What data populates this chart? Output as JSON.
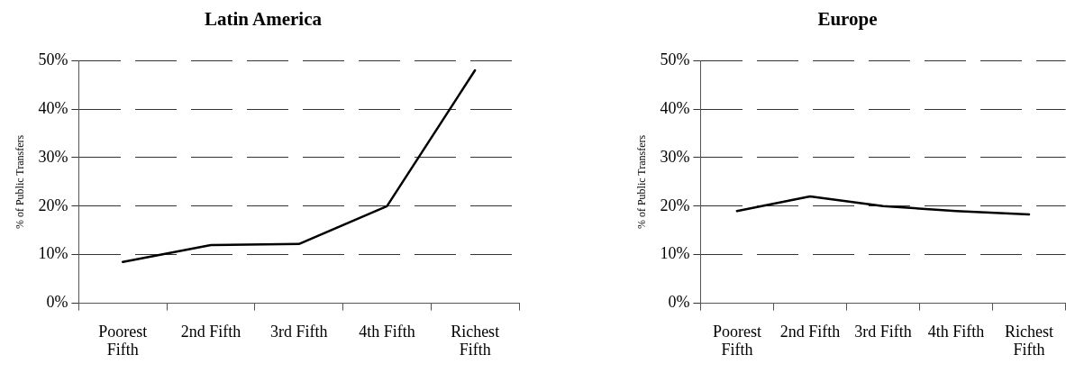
{
  "chart_data": [
    {
      "type": "line",
      "title": "Latin America",
      "ylabel": "% of Public Transfers",
      "categories": [
        "Poorest Fifth",
        "2nd Fifth",
        "3rd Fifth",
        "4th Fifth",
        "Richest Fifth"
      ],
      "series": [
        {
          "color": "#000000",
          "values": [
            8.5,
            12,
            12.2,
            20,
            48
          ]
        }
      ],
      "ylim": [
        0,
        50
      ],
      "yticks": [
        {
          "value": 0,
          "label": "0%"
        },
        {
          "value": 10,
          "label": "10%"
        },
        {
          "value": 20,
          "label": "20%"
        },
        {
          "value": 30,
          "label": "30%"
        },
        {
          "value": 40,
          "label": "40%"
        },
        {
          "value": 50,
          "label": "50%"
        }
      ],
      "grid": "y",
      "legend": false,
      "marker": "none",
      "line_style": "solid"
    },
    {
      "type": "line",
      "title": "Europe",
      "ylabel": "% of Public Transfers",
      "categories": [
        "Poorest Fifth",
        "2nd Fifth",
        "3rd Fifth",
        "4th Fifth",
        "Richest Fifth"
      ],
      "series": [
        {
          "color": "#000000",
          "values": [
            19,
            22,
            20,
            19,
            18.3
          ]
        }
      ],
      "ylim": [
        0,
        50
      ],
      "yticks": [
        {
          "value": 0,
          "label": "0%"
        },
        {
          "value": 10,
          "label": "10%"
        },
        {
          "value": 20,
          "label": "20%"
        },
        {
          "value": 30,
          "label": "30%"
        },
        {
          "value": 40,
          "label": "40%"
        },
        {
          "value": 50,
          "label": "50%"
        }
      ],
      "grid": "y",
      "legend": false,
      "marker": "none",
      "line_style": "solid"
    }
  ]
}
